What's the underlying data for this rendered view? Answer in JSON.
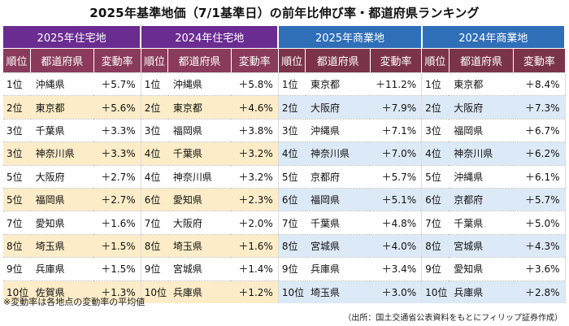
{
  "title": "2025年基準地価（7/1基準日）の前年比伸び率・都道府県ランキング",
  "colors": {
    "residential_header": "#6a2c91",
    "commercial_header": "#2f6fb8",
    "subheader": "#8a3a5a",
    "residential_stripe": "#fcecc8",
    "commercial_stripe": "#dce9f6"
  },
  "groups": [
    "2025年住宅地",
    "2024年住宅地",
    "2025年商業地",
    "2024年商業地"
  ],
  "columns": {
    "rank": "順位",
    "prefecture": "都道府県",
    "rate": "変動率"
  },
  "rows": [
    {
      "r25_rank": "1位",
      "r25_pref": "沖縄県",
      "r25_rate": "＋5.7%",
      "r24_rank": "1位",
      "r24_pref": "沖縄県",
      "r24_rate": "＋5.8%",
      "c25_rank": "1位",
      "c25_pref": "東京都",
      "c25_rate": "＋11.2%",
      "c24_rank": "1位",
      "c24_pref": "東京都",
      "c24_rate": "＋8.4%"
    },
    {
      "r25_rank": "2位",
      "r25_pref": "東京都",
      "r25_rate": "＋5.6%",
      "r24_rank": "2位",
      "r24_pref": "東京都",
      "r24_rate": "＋4.6%",
      "c25_rank": "2位",
      "c25_pref": "大阪府",
      "c25_rate": "＋7.9%",
      "c24_rank": "2位",
      "c24_pref": "大阪府",
      "c24_rate": "＋7.3%"
    },
    {
      "r25_rank": "3位",
      "r25_pref": "千葉県",
      "r25_rate": "＋3.3%",
      "r24_rank": "3位",
      "r24_pref": "福岡県",
      "r24_rate": "＋3.8%",
      "c25_rank": "3位",
      "c25_pref": "沖縄県",
      "c25_rate": "＋7.1%",
      "c24_rank": "3位",
      "c24_pref": "福岡県",
      "c24_rate": "＋6.7%"
    },
    {
      "r25_rank": "3位",
      "r25_pref": "神奈川県",
      "r25_rate": "＋3.3%",
      "r24_rank": "4位",
      "r24_pref": "千葉県",
      "r24_rate": "＋3.2%",
      "c25_rank": "4位",
      "c25_pref": "神奈川県",
      "c25_rate": "＋7.0%",
      "c24_rank": "4位",
      "c24_pref": "神奈川県",
      "c24_rate": "＋6.2%"
    },
    {
      "r25_rank": "5位",
      "r25_pref": "大阪府",
      "r25_rate": "＋2.7%",
      "r24_rank": "4位",
      "r24_pref": "神奈川県",
      "r24_rate": "＋3.2%",
      "c25_rank": "5位",
      "c25_pref": "京都府",
      "c25_rate": "＋5.7%",
      "c24_rank": "5位",
      "c24_pref": "沖縄県",
      "c24_rate": "＋6.1%"
    },
    {
      "r25_rank": "5位",
      "r25_pref": "福岡県",
      "r25_rate": "＋2.7%",
      "r24_rank": "6位",
      "r24_pref": "愛知県",
      "r24_rate": "＋2.3%",
      "c25_rank": "6位",
      "c25_pref": "福岡県",
      "c25_rate": "＋5.1%",
      "c24_rank": "6位",
      "c24_pref": "京都府",
      "c24_rate": "＋5.7%"
    },
    {
      "r25_rank": "7位",
      "r25_pref": "愛知県",
      "r25_rate": "＋1.6%",
      "r24_rank": "7位",
      "r24_pref": "大阪府",
      "r24_rate": "＋2.0%",
      "c25_rank": "7位",
      "c25_pref": "千葉県",
      "c25_rate": "＋4.8%",
      "c24_rank": "7位",
      "c24_pref": "千葉県",
      "c24_rate": "＋5.0%"
    },
    {
      "r25_rank": "8位",
      "r25_pref": "埼玉県",
      "r25_rate": "＋1.5%",
      "r24_rank": "8位",
      "r24_pref": "埼玉県",
      "r24_rate": "＋1.6%",
      "c25_rank": "8位",
      "c25_pref": "宮城県",
      "c25_rate": "＋4.0%",
      "c24_rank": "8位",
      "c24_pref": "宮城県",
      "c24_rate": "＋4.3%"
    },
    {
      "r25_rank": "9位",
      "r25_pref": "兵庫県",
      "r25_rate": "＋1.5%",
      "r24_rank": "9位",
      "r24_pref": "宮城県",
      "r24_rate": "＋1.4%",
      "c25_rank": "9位",
      "c25_pref": "兵庫県",
      "c25_rate": "＋3.4%",
      "c24_rank": "9位",
      "c24_pref": "愛知県",
      "c24_rate": "＋3.6%"
    },
    {
      "r25_rank": "10位",
      "r25_pref": "佐賀県",
      "r25_rate": "＋1.3%",
      "r24_rank": "10位",
      "r24_pref": "兵庫県",
      "r24_rate": "＋1.2%",
      "c25_rank": "10位",
      "c25_pref": "埼玉県",
      "c25_rate": "＋3.0%",
      "c24_rank": "10位",
      "c24_pref": "兵庫県",
      "c24_rate": "＋2.8%"
    }
  ],
  "footnote": "※変動率は各地点の変動率の平均値",
  "source": "（出所：国土交通省公表資料をもとにフィリップ証券作成）"
}
